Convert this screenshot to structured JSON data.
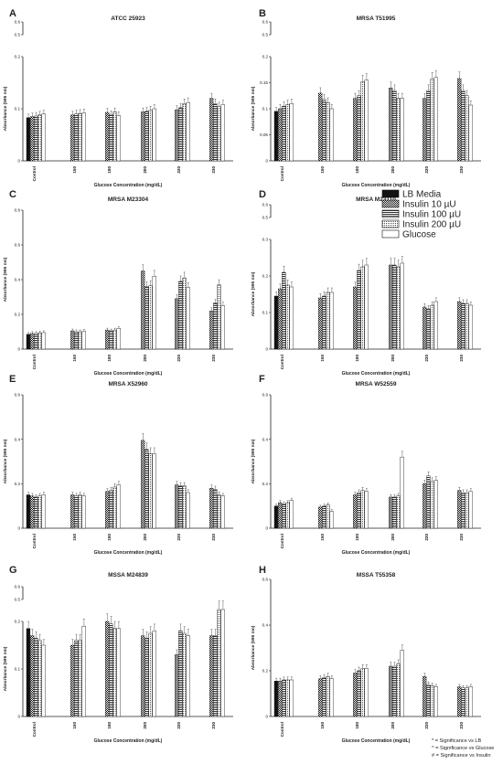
{
  "figure": {
    "footnotes": [
      "* = Significance vs LB",
      "^ = Significance vs Glucose",
      "# = Significance vs Insulin"
    ]
  },
  "legend": {
    "entries": [
      "LB Media",
      "Insulin 10 µU",
      "Insulin 100 µU",
      "Insulin 200 µU",
      "Glucose"
    ],
    "placement": "right of panel D"
  },
  "chart_data": [
    {
      "panel": "A",
      "title": "ATCC 25923",
      "type": "bar",
      "ylabel": "Absorbance (595 nm)",
      "xlabel": "Glucose Concentration (mg/dL)",
      "categories": [
        "Control",
        "150",
        "180",
        "200",
        "220",
        "230"
      ],
      "axis_break": true,
      "yticks": [
        0.0,
        0.1,
        0.2,
        0.5,
        0.6
      ],
      "series": [
        {
          "name": "LB Media",
          "values": [
            0.083,
            null,
            null,
            null,
            null,
            null
          ]
        },
        {
          "name": "Insulin 10 µU",
          "values": [
            0.085,
            0.088,
            0.093,
            0.094,
            0.098,
            0.12
          ]
        },
        {
          "name": "Insulin 100 µU",
          "values": [
            0.086,
            0.09,
            0.089,
            0.095,
            0.102,
            0.11
          ]
        },
        {
          "name": "Insulin 200 µU",
          "values": [
            0.088,
            0.091,
            0.094,
            0.097,
            0.11,
            0.104
          ]
        },
        {
          "name": "Glucose",
          "values": [
            0.09,
            0.092,
            0.087,
            0.1,
            0.112,
            0.108
          ]
        }
      ]
    },
    {
      "panel": "B",
      "title": "MRSA T51995",
      "type": "bar",
      "ylabel": "Absorbance (595 nm)",
      "xlabel": "Glucose Concentration (mg/dL)",
      "categories": [
        "Control",
        "150",
        "180",
        "200",
        "220",
        "230"
      ],
      "axis_break": true,
      "yticks": [
        0.0,
        0.05,
        0.1,
        0.15,
        0.2,
        0.5,
        0.6
      ],
      "series": [
        {
          "name": "LB Media",
          "values": [
            0.095,
            null,
            null,
            null,
            null,
            null
          ]
        },
        {
          "name": "Insulin 10 µU",
          "values": [
            0.1,
            0.13,
            0.12,
            0.14,
            0.12,
            0.158
          ]
        },
        {
          "name": "Insulin 100 µU",
          "values": [
            0.105,
            0.118,
            0.125,
            0.135,
            0.135,
            0.135
          ]
        },
        {
          "name": "Insulin 200 µU",
          "values": [
            0.108,
            0.112,
            0.152,
            0.12,
            0.157,
            0.125
          ]
        },
        {
          "name": "Glucose",
          "values": [
            0.11,
            0.1,
            0.155,
            0.12,
            0.16,
            0.107
          ]
        }
      ]
    },
    {
      "panel": "C",
      "title": "MRSA M23304",
      "type": "bar",
      "ylabel": "Absorbance (595 nm)",
      "xlabel": "Glucose Concentration (mg/dL)",
      "categories": [
        "Control",
        "150",
        "180",
        "200",
        "220",
        "230"
      ],
      "ylim": [
        0,
        0.8
      ],
      "yticks": [
        0.0,
        0.2,
        0.4,
        0.6,
        0.8
      ],
      "series": [
        {
          "name": "LB Media",
          "values": [
            0.085,
            null,
            null,
            null,
            null,
            null
          ]
        },
        {
          "name": "Insulin 10 µU",
          "values": [
            0.09,
            0.105,
            0.11,
            0.45,
            0.29,
            0.22
          ]
        },
        {
          "name": "Insulin 100 µU",
          "values": [
            0.09,
            0.1,
            0.105,
            0.36,
            0.39,
            0.265
          ]
        },
        {
          "name": "Insulin 200 µU",
          "values": [
            0.093,
            0.1,
            0.11,
            0.365,
            0.41,
            0.37
          ]
        },
        {
          "name": "Glucose",
          "values": [
            0.095,
            0.103,
            0.12,
            0.42,
            0.355,
            0.25
          ]
        }
      ]
    },
    {
      "panel": "D",
      "title": "MRSA M23110",
      "type": "bar",
      "ylabel": "Absorbance (595 nm)",
      "xlabel": "Glucose Concentration (mg/dL)",
      "categories": [
        "Control",
        "150",
        "180",
        "200",
        "220",
        "230"
      ],
      "axis_break": true,
      "yticks": [
        0.0,
        0.1,
        0.2,
        0.3,
        0.5,
        0.6
      ],
      "series": [
        {
          "name": "LB Media",
          "values": [
            0.145,
            null,
            null,
            null,
            null,
            null
          ]
        },
        {
          "name": "Insulin 10 µU",
          "values": [
            0.165,
            0.14,
            0.17,
            0.23,
            0.115,
            0.13
          ]
        },
        {
          "name": "Insulin 100 µU",
          "values": [
            0.21,
            0.145,
            0.215,
            0.23,
            0.11,
            0.125
          ]
        },
        {
          "name": "Insulin 200 µU",
          "values": [
            0.175,
            0.155,
            0.225,
            0.225,
            0.12,
            0.125
          ]
        },
        {
          "name": "Glucose",
          "values": [
            0.17,
            0.155,
            0.23,
            0.235,
            0.13,
            0.12
          ]
        }
      ]
    },
    {
      "panel": "E",
      "title": "MRSA X52960",
      "type": "bar",
      "ylabel": "Absorbance (595 nm)",
      "xlabel": "Glucose Concentration (mg/dL)",
      "categories": [
        "Control",
        "150",
        "180",
        "200",
        "220",
        "230"
      ],
      "ylim": [
        0,
        0.6
      ],
      "yticks": [
        0.0,
        0.2,
        0.4,
        0.6
      ],
      "series": [
        {
          "name": "LB Media",
          "values": [
            0.15,
            null,
            null,
            null,
            null,
            null
          ]
        },
        {
          "name": "Insulin 10 µU",
          "values": [
            0.145,
            0.15,
            0.165,
            0.395,
            0.195,
            0.18
          ]
        },
        {
          "name": "Insulin 100 µU",
          "values": [
            0.14,
            0.145,
            0.17,
            0.355,
            0.19,
            0.175
          ]
        },
        {
          "name": "Insulin 200 µU",
          "values": [
            0.145,
            0.15,
            0.185,
            0.335,
            0.19,
            0.15
          ]
        },
        {
          "name": "Glucose",
          "values": [
            0.15,
            0.145,
            0.195,
            0.335,
            0.16,
            0.145
          ]
        }
      ]
    },
    {
      "panel": "F",
      "title": "MRSA W52559",
      "type": "bar",
      "ylabel": "Absorbance (595 nm)",
      "xlabel": "Glucose Concentration (mg/dL)",
      "categories": [
        "Control",
        "150",
        "180",
        "200",
        "220",
        "230"
      ],
      "ylim": [
        0,
        0.6
      ],
      "yticks": [
        0.0,
        0.2,
        0.4,
        0.6
      ],
      "series": [
        {
          "name": "LB Media",
          "values": [
            0.1,
            null,
            null,
            null,
            null,
            null
          ]
        },
        {
          "name": "Insulin 10 µU",
          "values": [
            0.115,
            0.095,
            0.15,
            0.14,
            0.2,
            0.17
          ]
        },
        {
          "name": "Insulin 100 µU",
          "values": [
            0.11,
            0.1,
            0.16,
            0.14,
            0.235,
            0.16
          ]
        },
        {
          "name": "Insulin 200 µU",
          "values": [
            0.115,
            0.105,
            0.17,
            0.145,
            0.21,
            0.16
          ]
        },
        {
          "name": "Glucose",
          "values": [
            0.125,
            0.075,
            0.165,
            0.32,
            0.215,
            0.165
          ]
        }
      ]
    },
    {
      "panel": "G",
      "title": "MSSA M24839",
      "type": "bar",
      "ylabel": "Absorbance (595 nm)",
      "xlabel": "Glucose Concentration (mg/dL)",
      "categories": [
        "Control",
        "150",
        "180",
        "200",
        "220",
        "230"
      ],
      "axis_break": true,
      "yticks": [
        0.0,
        0.1,
        0.2,
        0.5,
        0.6
      ],
      "series": [
        {
          "name": "LB Media",
          "values": [
            0.185,
            null,
            null,
            null,
            null,
            null
          ]
        },
        {
          "name": "Insulin 10 µU",
          "values": [
            0.17,
            0.15,
            0.2,
            0.17,
            0.13,
            0.17
          ]
        },
        {
          "name": "Insulin 100 µU",
          "values": [
            0.165,
            0.16,
            0.195,
            0.165,
            0.18,
            0.17
          ]
        },
        {
          "name": "Insulin 200 µU",
          "values": [
            0.16,
            0.16,
            0.185,
            0.175,
            0.175,
            0.225
          ]
        },
        {
          "name": "Glucose",
          "values": [
            0.15,
            0.19,
            0.185,
            0.18,
            0.17,
            0.225
          ]
        }
      ]
    },
    {
      "panel": "H",
      "title": "MSSA T55358",
      "type": "bar",
      "ylabel": "Absorbance (595 nm)",
      "xlabel": "Glucose Concentration (mg/dL)",
      "categories": [
        "Control",
        "150",
        "180",
        "200",
        "220",
        "230"
      ],
      "ylim": [
        0,
        0.6
      ],
      "yticks": [
        0.0,
        0.2,
        0.4,
        0.6
      ],
      "series": [
        {
          "name": "LB Media",
          "values": [
            0.155,
            null,
            null,
            null,
            null,
            null
          ]
        },
        {
          "name": "Insulin 10 µU",
          "values": [
            0.155,
            0.165,
            0.19,
            0.22,
            0.175,
            0.13
          ]
        },
        {
          "name": "Insulin 100 µU",
          "values": [
            0.16,
            0.17,
            0.2,
            0.22,
            0.14,
            0.125
          ]
        },
        {
          "name": "Insulin 200 µU",
          "values": [
            0.16,
            0.175,
            0.21,
            0.23,
            0.135,
            0.125
          ]
        },
        {
          "name": "Glucose",
          "values": [
            0.16,
            0.165,
            0.21,
            0.29,
            0.13,
            0.13
          ]
        }
      ]
    }
  ]
}
